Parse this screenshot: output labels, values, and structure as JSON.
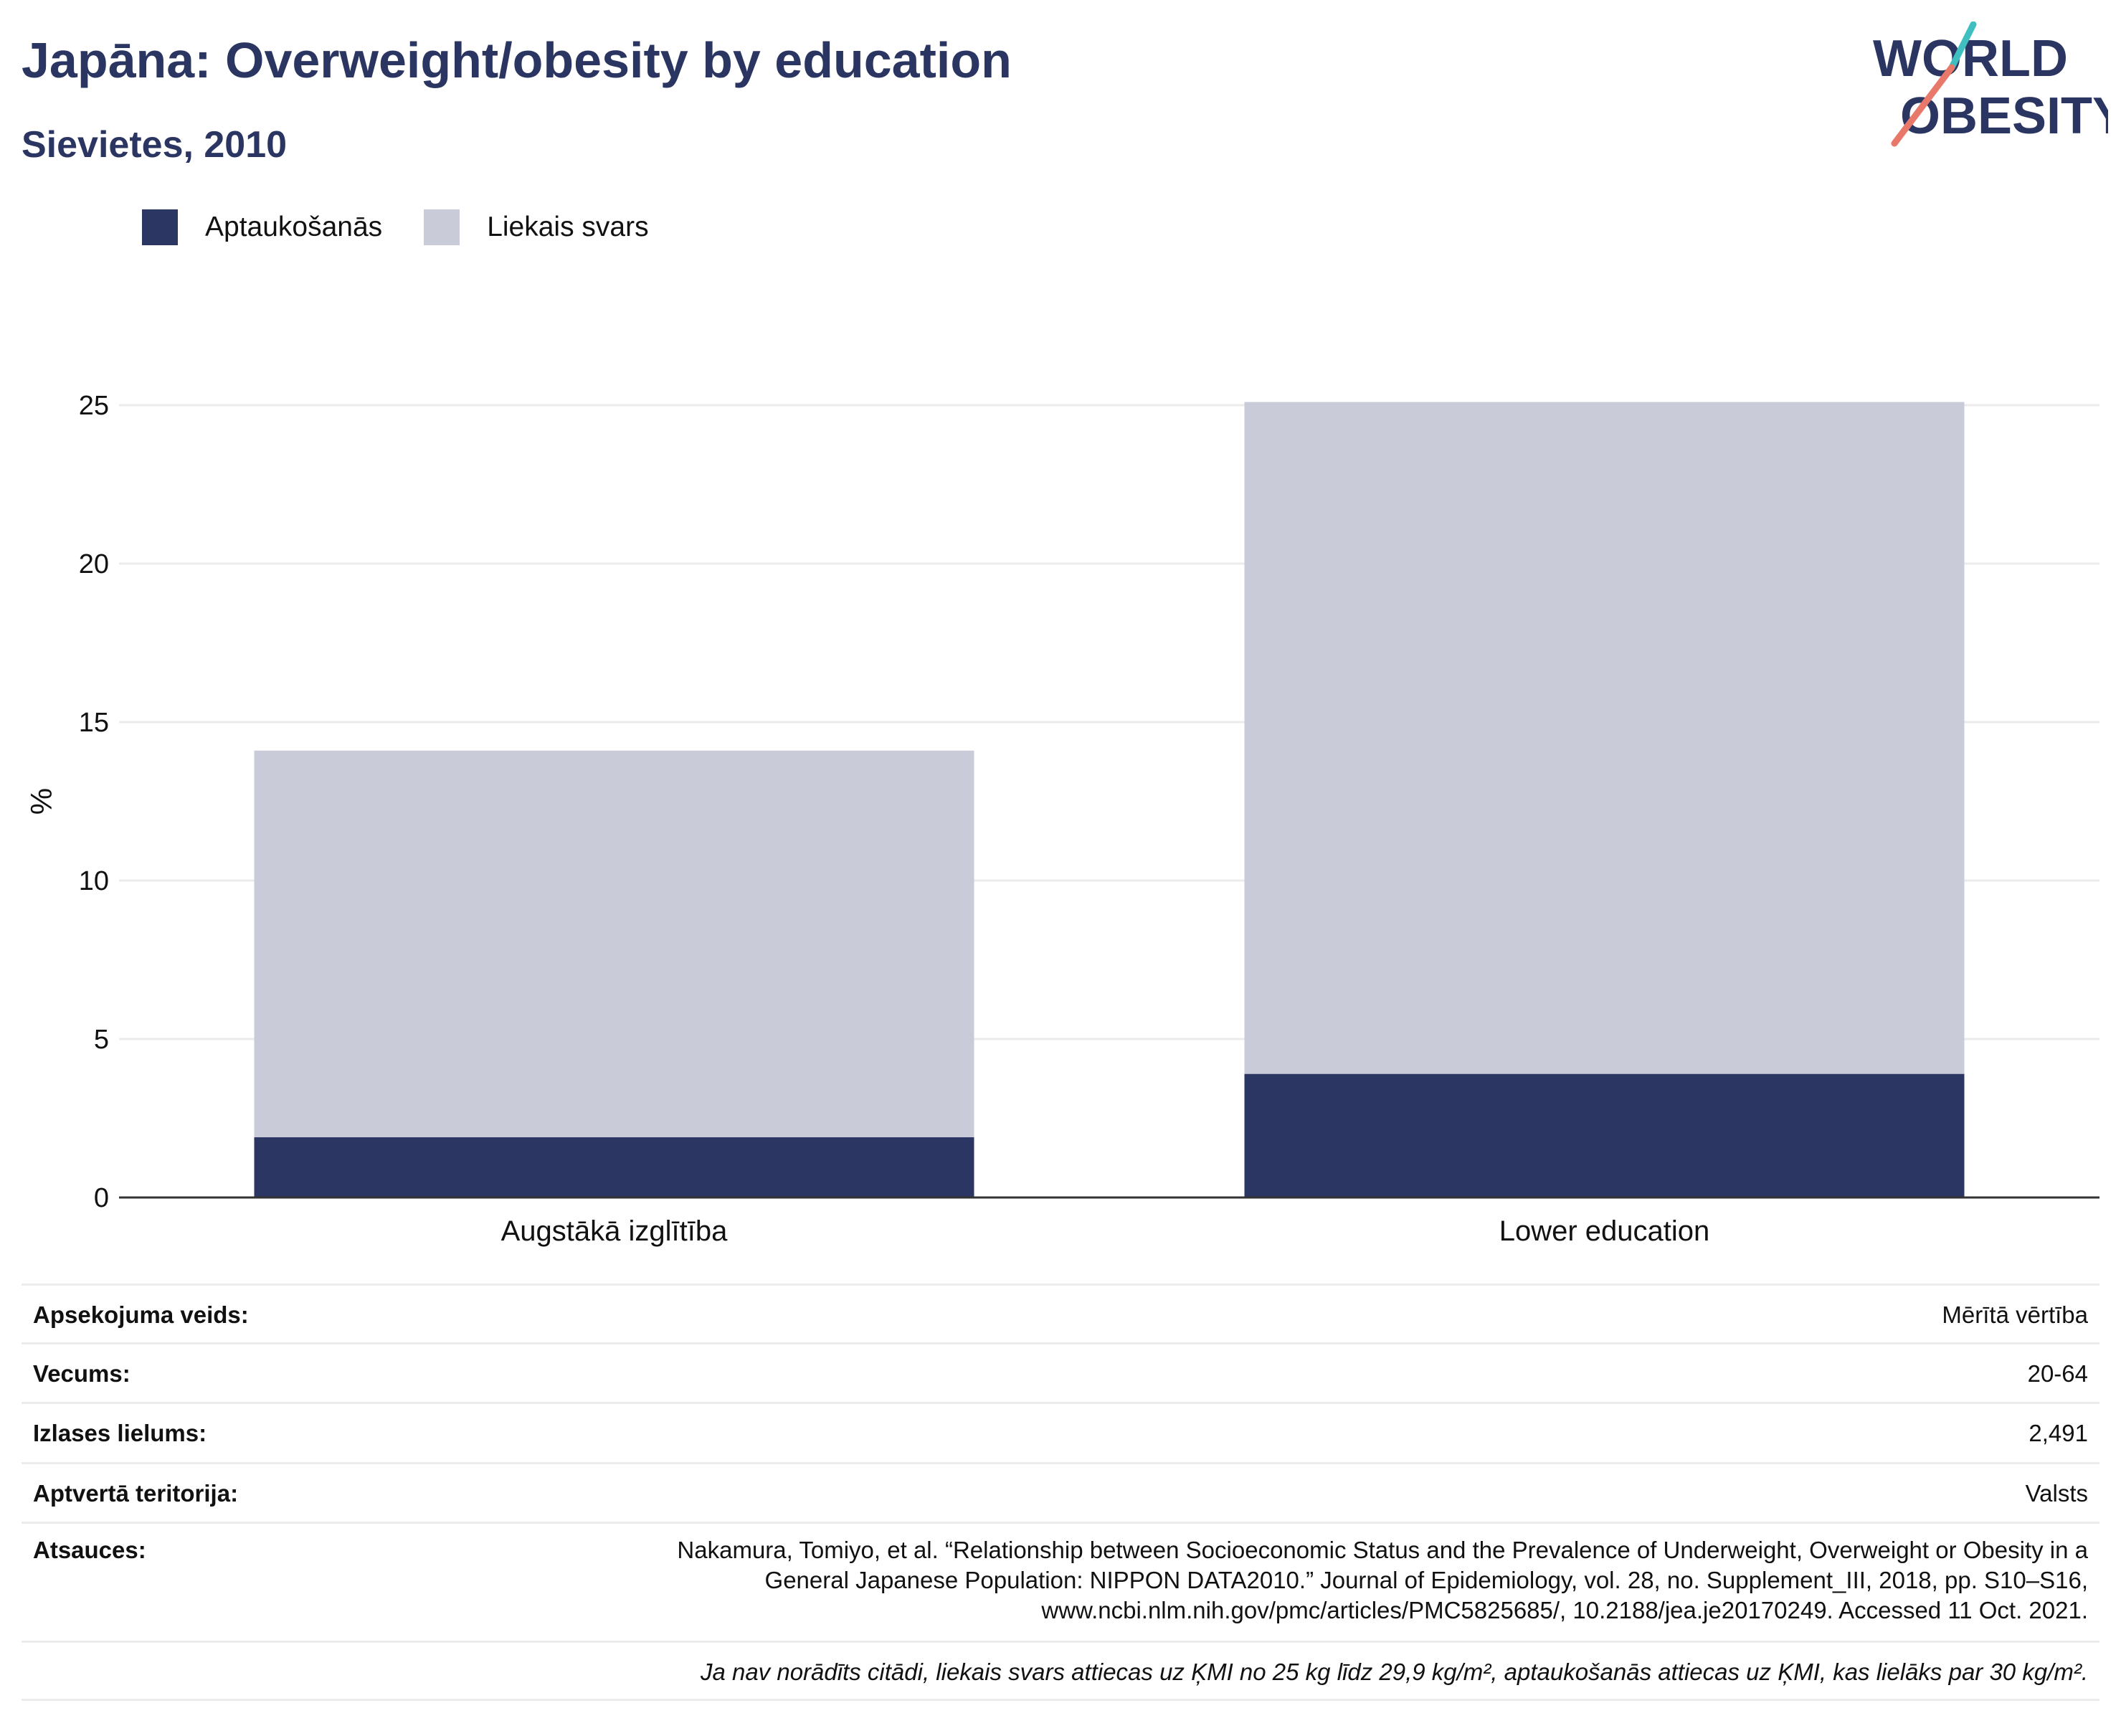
{
  "header": {
    "title": "Japāna: Overweight/obesity by education",
    "subtitle": "Sievietes, 2010"
  },
  "logo": {
    "line1": "WORLD",
    "line2": "OBESITY"
  },
  "legend": {
    "items": [
      {
        "label": "Aptaukošanās",
        "color": "#2b3663"
      },
      {
        "label": "Liekais svars",
        "color": "#c9ccd8"
      }
    ]
  },
  "chart_data": {
    "type": "bar",
    "stacked": true,
    "title": "Japāna: Overweight/obesity by education",
    "subtitle": "Sievietes, 2010",
    "xlabel": "",
    "ylabel": "%",
    "categories": [
      "Augstākā izglītība",
      "Lower education"
    ],
    "series": [
      {
        "name": "Aptaukošanās",
        "color": "#2b3663",
        "values": [
          1.9,
          3.9
        ]
      },
      {
        "name": "Liekais svars",
        "color": "#c9ccd8",
        "values": [
          12.2,
          21.2
        ]
      }
    ],
    "ylim": [
      0,
      25
    ],
    "yticks": [
      0,
      5,
      10,
      15,
      20,
      25
    ],
    "grid": true,
    "legend_position": "top-left"
  },
  "meta": {
    "rows": [
      {
        "label": "Apsekojuma veids:",
        "value": "Mērītā vērtība"
      },
      {
        "label": "Vecums:",
        "value": "20-64"
      },
      {
        "label": "Izlases lielums:",
        "value": "2,491"
      },
      {
        "label": "Aptvertā teritorija:",
        "value": "Valsts"
      }
    ],
    "references_label": "Atsauces:",
    "references_lines": [
      "Nakamura, Tomiyo, et al. “Relationship between Socioeconomic Status and the Prevalence of Underweight, Overweight or Obesity in a",
      "General Japanese Population: NIPPON DATA2010.” Journal of Epidemiology, vol. 28, no. Supplement_III, 2018, pp. S10–S16,",
      "www.ncbi.nlm.nih.gov/pmc/articles/PMC5825685/, 10.2188/jea.je20170249. Accessed 11 Oct. 2021."
    ],
    "footnote": "Ja nav norādīts citādi, liekais svars attiecas uz ĶMI no 25 kg līdz 29,9 kg/m², aptaukošanās attiecas uz ĶMI, kas lielāks par 30 kg/m²."
  }
}
